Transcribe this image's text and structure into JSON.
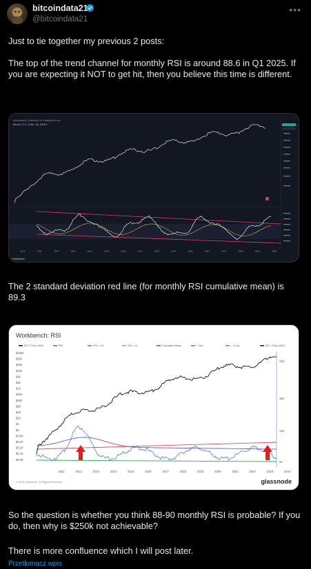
{
  "post": {
    "author_name": "bitcoindata21",
    "author_handle": "@bitcoindata21",
    "paragraph_1": "Just to tie together my previous 2 posts:",
    "paragraph_2": "The top of the trend channel for monthly RSI is around 88.6 in Q1 2025. If you are expecting it NOT to get hit, then you believe this time is different.",
    "paragraph_3": "The 2 standard deviation red line (for monthly RSI cumulative mean) is 89.3",
    "paragraph_4": "So the question is whether you think 88-90 monthly RSI is probable? If you do, then why is $250k not achievable?",
    "paragraph_5": "There is more confluence which I will post later.",
    "translate_label": "Przetłumacz wpis",
    "more_icon": "more-dots-icon",
    "verified_icon": "verified-badge-icon"
  },
  "tv_chart": {
    "top_legend": "Bitcoin / U.S. Dollar, 1M, INDEX",
    "watermark": "TradingView",
    "x_ticks": [
      "2010",
      "2011",
      "2012",
      "2013",
      "2014",
      "2015",
      "2016",
      "2017",
      "2018",
      "2019",
      "2020",
      "2021",
      "2022",
      "2023",
      "2024",
      "2025"
    ]
  },
  "gn_chart": {
    "title": "Workbench: RSI",
    "legend": [
      "BTC: Price (USD)",
      "RSI",
      "RSI + 1%",
      "RSI + 10",
      "Cumulative Mean",
      "+ 2sd",
      "- 1.5 sd",
      "BTC: Price (USD)"
    ],
    "legend_colors": [
      "#111111",
      "#2f6fde",
      "#e04b4b",
      "#9b9b9b",
      "#6a3fc9",
      "#e04b4b",
      "#2aa84a",
      "#111111"
    ],
    "y_left_ticks": [
      "$100k",
      "$50k",
      "$20k",
      "$10k",
      "$4k",
      "$2k",
      "$1k",
      "$400",
      "$200",
      "$80",
      "$40",
      "$10",
      "$4",
      "$2",
      "$0.80",
      "$0.40",
      "$0.20",
      "$0.10",
      "$0.06"
    ],
    "y_right_ticks": [
      "200",
      "150",
      "100",
      "50"
    ],
    "x_ticks": [
      "2011",
      "2012",
      "2013",
      "2014",
      "2015",
      "2016",
      "2017",
      "2018",
      "2019",
      "2020",
      "2021",
      "2022",
      "2023",
      "2024"
    ],
    "copyright": "© 2024 Glassnode. All Rights Reserved.",
    "brand": "glassnode"
  }
}
